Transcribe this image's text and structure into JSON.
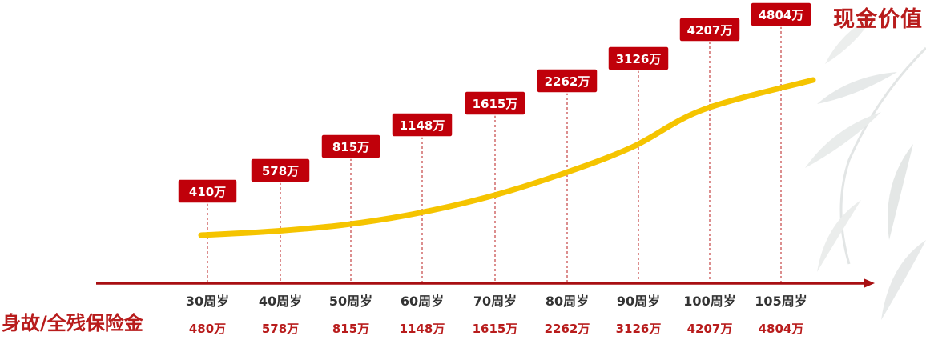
{
  "title": "现金价值",
  "footer_label": "身故/全残保险金",
  "colors": {
    "badge": "#c0000a",
    "curve": "#f5c400",
    "axis": "#a80f12",
    "dash": "#b81c1c",
    "age_text": "#333333",
    "benefit_text": "#b81c1c"
  },
  "chart_data": {
    "type": "line",
    "categories": [
      "30周岁",
      "40周岁",
      "50周岁",
      "60周岁",
      "70周岁",
      "80周岁",
      "90周岁",
      "100周岁",
      "105周岁"
    ],
    "series": [
      {
        "name": "现金价值",
        "values": [
          410,
          578,
          815,
          1148,
          1615,
          2262,
          3126,
          4207,
          4804
        ]
      }
    ],
    "value_labels": [
      "410万",
      "578万",
      "815万",
      "1148万",
      "1615万",
      "2262万",
      "3126万",
      "4207万",
      "4804万"
    ],
    "benefit_labels": [
      "480万",
      "578万",
      "815万",
      "1148万",
      "1615万",
      "2262万",
      "3126万",
      "4207万",
      "4804万"
    ]
  }
}
